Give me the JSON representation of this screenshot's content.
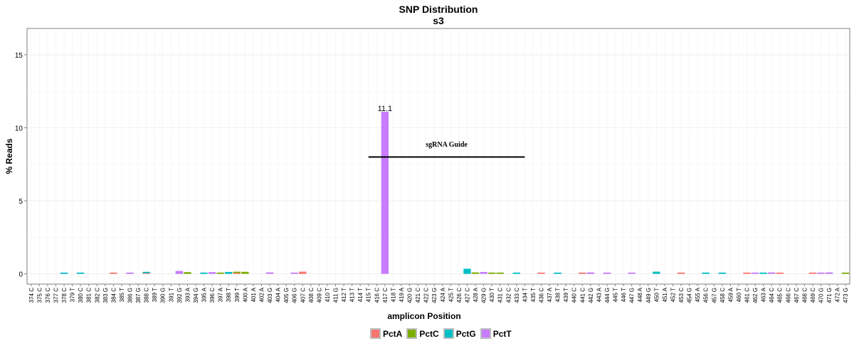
{
  "chart_data": {
    "type": "bar",
    "title": "SNP Distribution",
    "subtitle": "s3",
    "xlabel": "amplicon Position",
    "ylabel": "% Reads",
    "ylim": [
      -0.7,
      16.8
    ],
    "yticks": [
      0,
      5,
      10,
      15
    ],
    "grid": true,
    "legend_position": "bottom",
    "categories": [
      "374_C",
      "375_C",
      "376_C",
      "377_C",
      "378_C",
      "379_T",
      "380_C",
      "381_C",
      "382_C",
      "383_G",
      "384_C",
      "385_T",
      "386_G",
      "387_G",
      "388_C",
      "389_T",
      "390_G",
      "391_T",
      "392_G",
      "393_A",
      "394_G",
      "395_A",
      "396_C",
      "397_A",
      "398_T",
      "399_T",
      "400_A",
      "401_A",
      "402_A",
      "403_G",
      "404_A",
      "405_G",
      "406_G",
      "407_C",
      "408_C",
      "409_C",
      "410_T",
      "411_G",
      "412_T",
      "413_T",
      "414_T",
      "415_T",
      "416_C",
      "417_C",
      "418_T",
      "419_A",
      "420_G",
      "421_C",
      "422_C",
      "423_G",
      "424_A",
      "425_T",
      "426_C",
      "427_C",
      "428_A",
      "429_G",
      "430_T",
      "431_C",
      "432_C",
      "433_C",
      "434_T",
      "435_T",
      "436_C",
      "437_A",
      "438_T",
      "439_T",
      "440_C",
      "441_C",
      "442_G",
      "443_A",
      "444_G",
      "445_T",
      "446_T",
      "447_G",
      "448_A",
      "449_G",
      "450_T",
      "451_A",
      "452_T",
      "453_C",
      "454_G",
      "455_A",
      "456_C",
      "457_G",
      "458_C",
      "459_A",
      "460_T",
      "461_C",
      "462_G",
      "463_A",
      "464_C",
      "465_C",
      "466_C",
      "467_C",
      "468_C",
      "469_C",
      "470_G",
      "471_G",
      "472_A",
      "473_G"
    ],
    "series": [
      {
        "name": "PctA",
        "color": "#F8766D",
        "values": [
          {
            "x": "384_C",
            "y": 0.05
          },
          {
            "x": "388_C",
            "y": 0.05
          },
          {
            "x": "399_T",
            "y": 0.06
          },
          {
            "x": "407_C",
            "y": 0.15
          },
          {
            "x": "436_C",
            "y": 0.08
          },
          {
            "x": "441_C",
            "y": 0.05
          },
          {
            "x": "453_C",
            "y": 0.05
          },
          {
            "x": "461_C",
            "y": 0.05
          },
          {
            "x": "465_C",
            "y": 0.05
          },
          {
            "x": "469_C",
            "y": 0.05
          }
        ]
      },
      {
        "name": "PctC",
        "color": "#7CAE00",
        "values": [
          {
            "x": "393_A",
            "y": 0.12
          },
          {
            "x": "397_A",
            "y": 0.05
          },
          {
            "x": "399_T",
            "y": 0.06
          },
          {
            "x": "400_A",
            "y": 0.14
          },
          {
            "x": "428_A",
            "y": 0.1
          },
          {
            "x": "430_T",
            "y": 0.06
          },
          {
            "x": "431_C",
            "y": 0.05
          },
          {
            "x": "473_G",
            "y": 0.06
          }
        ]
      },
      {
        "name": "PctG",
        "color": "#00BFC4",
        "values": [
          {
            "x": "378_C",
            "y": 0.05
          },
          {
            "x": "380_C",
            "y": 0.05
          },
          {
            "x": "388_C",
            "y": 0.05
          },
          {
            "x": "395_A",
            "y": 0.05
          },
          {
            "x": "398_T",
            "y": 0.13
          },
          {
            "x": "427_C",
            "y": 0.35
          },
          {
            "x": "433_C",
            "y": 0.08
          },
          {
            "x": "438_T",
            "y": 0.05
          },
          {
            "x": "450_T",
            "y": 0.15
          },
          {
            "x": "456_C",
            "y": 0.05
          },
          {
            "x": "458_C",
            "y": 0.05
          },
          {
            "x": "463_A",
            "y": 0.05
          }
        ]
      },
      {
        "name": "PctT",
        "color": "#C77CFF",
        "values": [
          {
            "x": "386_G",
            "y": 0.05
          },
          {
            "x": "392_G",
            "y": 0.2
          },
          {
            "x": "396_C",
            "y": 0.12
          },
          {
            "x": "403_G",
            "y": 0.1
          },
          {
            "x": "406_G",
            "y": 0.05
          },
          {
            "x": "417_C",
            "y": 11.1
          },
          {
            "x": "429_G",
            "y": 0.13
          },
          {
            "x": "442_G",
            "y": 0.1
          },
          {
            "x": "444_G",
            "y": 0.05
          },
          {
            "x": "447_G",
            "y": 0.05
          },
          {
            "x": "462_G",
            "y": 0.05
          },
          {
            "x": "464_C",
            "y": 0.1
          },
          {
            "x": "470_G",
            "y": 0.05
          },
          {
            "x": "471_G",
            "y": 0.1
          }
        ]
      }
    ],
    "data_labels": [
      {
        "x": "417_C",
        "text": "11.1"
      }
    ],
    "annotations": [
      {
        "type": "segment",
        "label": "sgRNA Guide",
        "x_start": "415_T",
        "x_end": "434_T",
        "y": 8.0,
        "label_y": 8.7
      }
    ]
  }
}
